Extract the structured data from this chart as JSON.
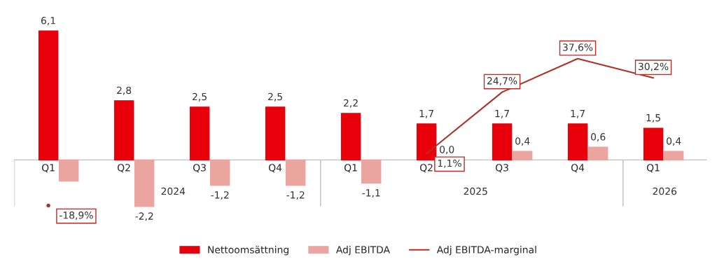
{
  "chart_data": {
    "type": "bar",
    "categories": [
      "Q1",
      "Q2",
      "Q3",
      "Q4",
      "Q1",
      "Q2",
      "Q3",
      "Q4",
      "Q1"
    ],
    "series": [
      {
        "name": "Nettoomsättning",
        "color": "#e8000b",
        "values": [
          6.1,
          2.8,
          2.5,
          2.5,
          2.2,
          1.7,
          1.7,
          1.7,
          1.5
        ],
        "value_labels": [
          "6,1",
          "2,8",
          "2,5",
          "2,5",
          "2,2",
          "1,7",
          "1,7",
          "1,7",
          "1,5"
        ]
      },
      {
        "name": "Adj EBITDA",
        "color": "#eba59f",
        "values": [
          -1.0,
          -2.2,
          -1.2,
          -1.2,
          -1.1,
          0.0,
          0.4,
          0.6,
          0.4
        ],
        "value_labels": [
          null,
          "-2,2",
          "-1,2",
          "-1,2",
          "-1,1",
          "0,0",
          "0,4",
          "0,6",
          "0,4"
        ]
      },
      {
        "name": "Adj EBITDA-marginal",
        "type": "line",
        "axis": "y2",
        "color": "#b0302a",
        "values": [
          -18.9,
          null,
          null,
          null,
          null,
          1.1,
          24.7,
          37.6,
          30.2
        ],
        "value_labels": [
          "-18,9%",
          null,
          null,
          null,
          null,
          "1,1%",
          "24,7%",
          "37,6%",
          "30,2%"
        ]
      }
    ],
    "tick_labels": "x",
    "grid": false,
    "legend": "bottom",
    "marker": "none",
    "line_style": "solid",
    "annotations": [
      "2024",
      "2025",
      "2026"
    ]
  }
}
